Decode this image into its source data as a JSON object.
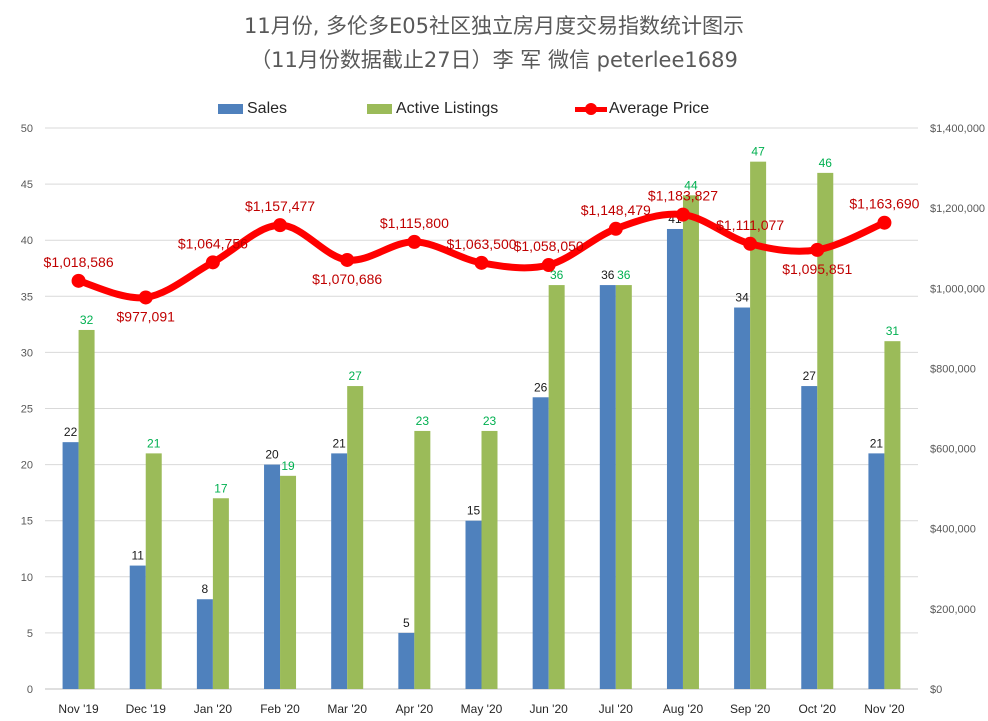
{
  "title": {
    "line1": "11月份, 多伦多E05社区独立房月度交易指数统计图示",
    "line2": "（11月份数据截止27日）李 军  微信  peterlee1689"
  },
  "legend": {
    "sales": "Sales",
    "active": "Active Listings",
    "price": "Average Price"
  },
  "colors": {
    "sales": "#4f81bd",
    "active": "#9bbb59",
    "price": "#ff0000",
    "sales_label": "#1a1a1a",
    "active_label": "#00b050",
    "price_label": "#c00000",
    "grid": "#d9d9d9",
    "axis_text": "#595959"
  },
  "chart_data": {
    "type": "bar",
    "title": "11月份, 多伦多E05社区独立房月度交易指数统计图示 （11月份数据截止27日）李 军  微信  peterlee1689",
    "categories": [
      "Nov '19",
      "Dec '19",
      "Jan '20",
      "Feb '20",
      "Mar '20",
      "Apr '20",
      "May '20",
      "Jun '20",
      "Jul '20",
      "Aug '20",
      "Sep '20",
      "Oct '20",
      "Nov '20"
    ],
    "series": [
      {
        "name": "Sales",
        "type": "bar",
        "axis": "left",
        "values": [
          22,
          11,
          8,
          20,
          21,
          5,
          15,
          26,
          36,
          41,
          34,
          27,
          21
        ]
      },
      {
        "name": "Active Listings",
        "type": "bar",
        "axis": "left",
        "values": [
          32,
          21,
          17,
          19,
          27,
          23,
          23,
          36,
          36,
          44,
          47,
          46,
          31
        ]
      },
      {
        "name": "Average Price",
        "type": "line",
        "axis": "right",
        "values": [
          1018586,
          977091,
          1064756,
          1157477,
          1070686,
          1115800,
          1063500,
          1058050,
          1148479,
          1183827,
          1111077,
          1095851,
          1163690
        ]
      }
    ],
    "price_labels": [
      "$1,018,586",
      "$977,091",
      "$1,064,756",
      "$1,157,477",
      "$1,070,686",
      "$1,115,800",
      "$1,063,500",
      "$1,058,050",
      "$1,148,479",
      "$1,183,827",
      "$1,111,077",
      "$1,095,851",
      "$1,163,690"
    ],
    "ylim": [
      0,
      50
    ],
    "yticks": [
      0,
      5,
      10,
      15,
      20,
      25,
      30,
      35,
      40,
      45,
      50
    ],
    "y2lim": [
      0,
      1400000
    ],
    "y2ticks": [
      0,
      200000,
      400000,
      600000,
      800000,
      1000000,
      1200000,
      1400000
    ],
    "y2tick_labels": [
      "$0",
      "$200,000",
      "$400,000",
      "$600,000",
      "$800,000",
      "$1,000,000",
      "$1,200,000",
      "$1,400,000"
    ],
    "grid": true,
    "legend_position": "top"
  }
}
